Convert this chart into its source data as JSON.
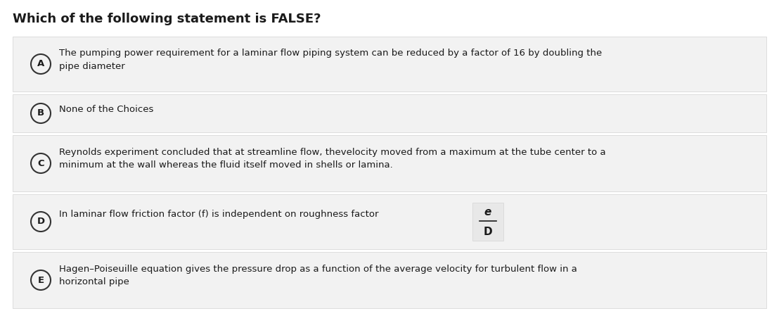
{
  "title": "Which of the following statement is FALSE?",
  "title_fontsize": 13,
  "title_fontweight": "bold",
  "background_color": "#ffffff",
  "row_bg_color": "#f2f2f2",
  "row_border_color": "#d8d8d8",
  "text_color": "#1a1a1a",
  "circle_edgecolor": "#333333",
  "choices": [
    {
      "label": "A",
      "text": "The pumping power requirement for a laminar flow piping system can be reduced by a factor of 16 by doubling the\npipe diameter",
      "has_fraction": false,
      "two_lines": true
    },
    {
      "label": "B",
      "text": "None of the Choices",
      "has_fraction": false,
      "two_lines": false
    },
    {
      "label": "C",
      "text": "Reynolds experiment concluded that at streamline flow, thevelocity moved from a maximum at the tube center to a\nminimum at the wall whereas the fluid itself moved in shells or lamina.",
      "has_fraction": false,
      "two_lines": true
    },
    {
      "label": "D",
      "text": "In laminar flow friction factor (f) is independent on roughness factor",
      "has_fraction": true,
      "two_lines": false,
      "fraction_num": "e",
      "fraction_den": "D"
    },
    {
      "label": "E",
      "text": "Hagen–Poiseuille equation gives the pressure drop as a function of the average velocity for turbulent flow in a\nhorizontal pipe",
      "has_fraction": false,
      "two_lines": true
    }
  ],
  "fig_width": 11.08,
  "fig_height": 4.76,
  "dpi": 100
}
